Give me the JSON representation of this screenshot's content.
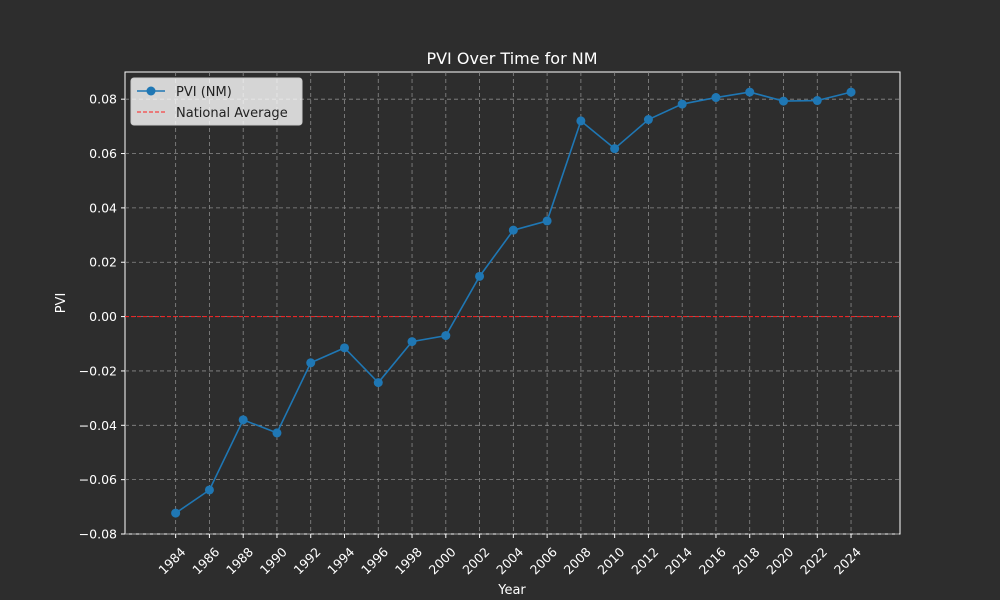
{
  "chart_data": {
    "type": "line",
    "title": "PVI Over Time for NM",
    "xlabel": "Year",
    "ylabel": "PVI",
    "x": [
      1984,
      1986,
      1988,
      1990,
      1992,
      1994,
      1996,
      1998,
      2000,
      2002,
      2004,
      2006,
      2008,
      2010,
      2012,
      2014,
      2016,
      2018,
      2020,
      2022,
      2024
    ],
    "x_tick_labels": [
      "1984",
      "1986",
      "1988",
      "1990",
      "1992",
      "1994",
      "1996",
      "1998",
      "2000",
      "2002",
      "2004",
      "2006",
      "2008",
      "2010",
      "2012",
      "2014",
      "2016",
      "2018",
      "2020",
      "2022",
      "2024"
    ],
    "y_ticks": [
      -0.08,
      -0.06,
      -0.04,
      -0.02,
      0.0,
      0.02,
      0.04,
      0.06,
      0.08
    ],
    "y_tick_labels": [
      "−0.08",
      "−0.06",
      "−0.04",
      "−0.02",
      "0.00",
      "0.02",
      "0.04",
      "0.06",
      "0.08"
    ],
    "ylim": [
      -0.08,
      0.09
    ],
    "xlim": [
      1981.0,
      2026.9
    ],
    "grid": true,
    "legend_position": "top-left",
    "series": [
      {
        "name": "PVI (NM)",
        "color": "#1f77b4",
        "style": "solid-line-with-markers",
        "values": [
          -0.0723,
          -0.0638,
          -0.038,
          -0.0428,
          -0.017,
          -0.0115,
          -0.0243,
          -0.0092,
          -0.007,
          0.0148,
          0.0318,
          0.0352,
          0.072,
          0.0618,
          0.0725,
          0.0782,
          0.0806,
          0.0826,
          0.0793,
          0.0795,
          0.0826
        ]
      }
    ],
    "reference_lines": [
      {
        "name": "National Average",
        "y": 0.0,
        "color": "#ff2020",
        "style": "dashed"
      }
    ]
  }
}
